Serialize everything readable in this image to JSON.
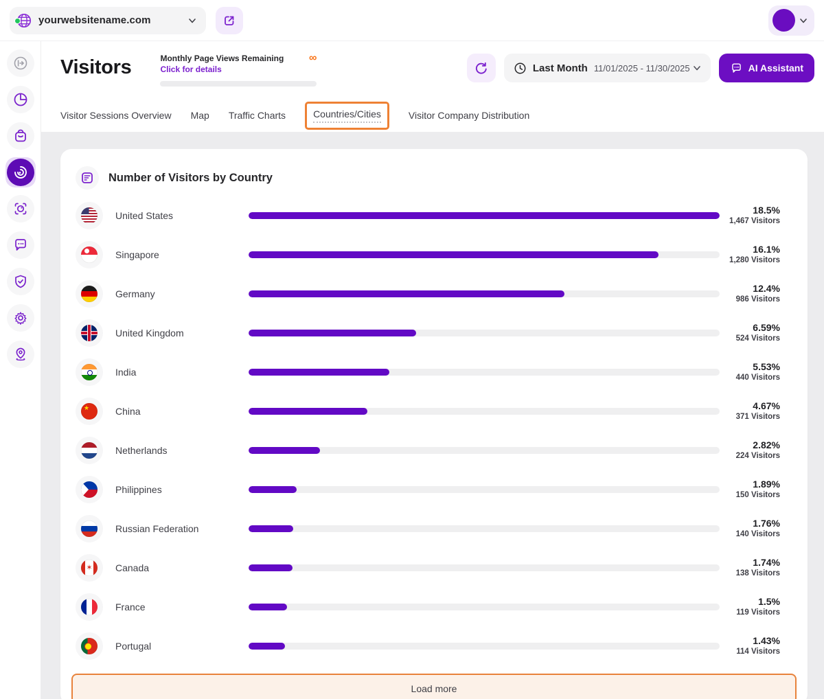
{
  "topbar": {
    "site_selector": {
      "value": "yourwebsitename.com"
    },
    "icons": [
      "globe-icon",
      "chevron-down-icon",
      "external-link-icon",
      "avatar",
      "chevron-down-icon"
    ]
  },
  "sidebar": {
    "items": [
      {
        "icon": "sidebar-collapse-icon",
        "active": false
      },
      {
        "icon": "pie-chart-icon",
        "active": false
      },
      {
        "icon": "shopping-bag-icon",
        "active": false
      },
      {
        "icon": "visitors-radar-icon",
        "active": true
      },
      {
        "icon": "session-recording-icon",
        "active": false
      },
      {
        "icon": "chat-bubble-icon",
        "active": false
      },
      {
        "icon": "shield-check-icon",
        "active": false
      },
      {
        "icon": "gear-icon",
        "active": false
      },
      {
        "icon": "location-pin-icon",
        "active": false
      }
    ]
  },
  "header": {
    "title": "Visitors",
    "page_views": {
      "label": "Monthly Page Views Remaining",
      "link": "Click for details",
      "value": "∞"
    },
    "date_range": {
      "preset": "Last Month",
      "range": "11/01/2025 - 11/30/2025"
    },
    "ai_button": "AI Assistant"
  },
  "tabs": [
    {
      "label": "Visitor Sessions Overview",
      "active": false,
      "highlighted": false
    },
    {
      "label": "Map",
      "active": false,
      "highlighted": false
    },
    {
      "label": "Traffic Charts",
      "active": false,
      "highlighted": false
    },
    {
      "label": "Countries/Cities",
      "active": true,
      "highlighted": true
    },
    {
      "label": "Visitor Company Distribution",
      "active": false,
      "highlighted": false
    }
  ],
  "card": {
    "title": "Number of Visitors by Country",
    "max_percent": 18.5,
    "countries": [
      {
        "name": "United States",
        "code": "us",
        "percent": "18.5%",
        "pct_value": 18.5,
        "visitors": "1,467 Visitors"
      },
      {
        "name": "Singapore",
        "code": "sg",
        "percent": "16.1%",
        "pct_value": 16.1,
        "visitors": "1,280 Visitors"
      },
      {
        "name": "Germany",
        "code": "de",
        "percent": "12.4%",
        "pct_value": 12.4,
        "visitors": "986 Visitors"
      },
      {
        "name": "United Kingdom",
        "code": "gb",
        "percent": "6.59%",
        "pct_value": 6.59,
        "visitors": "524 Visitors"
      },
      {
        "name": "India",
        "code": "in",
        "percent": "5.53%",
        "pct_value": 5.53,
        "visitors": "440 Visitors"
      },
      {
        "name": "China",
        "code": "cn",
        "percent": "4.67%",
        "pct_value": 4.67,
        "visitors": "371 Visitors"
      },
      {
        "name": "Netherlands",
        "code": "nl",
        "percent": "2.82%",
        "pct_value": 2.82,
        "visitors": "224 Visitors"
      },
      {
        "name": "Philippines",
        "code": "ph",
        "percent": "1.89%",
        "pct_value": 1.89,
        "visitors": "150 Visitors"
      },
      {
        "name": "Russian Federation",
        "code": "ru",
        "percent": "1.76%",
        "pct_value": 1.76,
        "visitors": "140 Visitors"
      },
      {
        "name": "Canada",
        "code": "ca",
        "percent": "1.74%",
        "pct_value": 1.74,
        "visitors": "138 Visitors"
      },
      {
        "name": "France",
        "code": "fr",
        "percent": "1.5%",
        "pct_value": 1.5,
        "visitors": "119 Visitors"
      },
      {
        "name": "Portugal",
        "code": "pt",
        "percent": "1.43%",
        "pct_value": 1.43,
        "visitors": "114 Visitors"
      }
    ],
    "load_more": "Load more"
  },
  "colors": {
    "accent_purple": "#6209c5",
    "button_purple": "#6c0ec2",
    "highlight_orange": "#ee8134",
    "infinity_orange": "#f97316",
    "load_more_bg": "#fcf1e8",
    "track_gray": "#efeff0"
  }
}
